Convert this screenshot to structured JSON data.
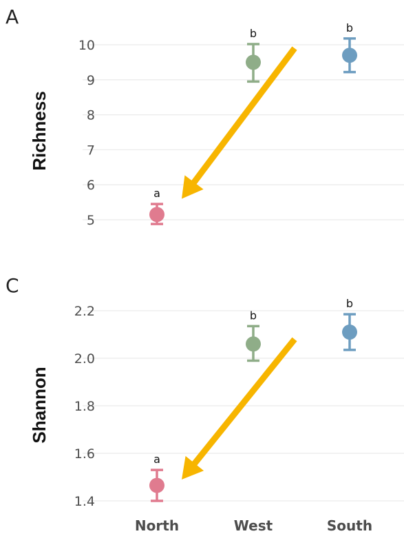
{
  "chart_data": [
    {
      "type": "scatter",
      "panel_label": "A",
      "ylabel": "Richness",
      "categories": [
        "North",
        "West",
        "South"
      ],
      "values": [
        5.15,
        9.5,
        9.7
      ],
      "error_low": [
        4.88,
        8.95,
        9.22
      ],
      "error_high": [
        5.45,
        10.02,
        10.18
      ],
      "significance_letters": [
        "a",
        "b",
        "b"
      ],
      "colors": [
        "#e07b8f",
        "#8fad88",
        "#6d9dc0"
      ],
      "ylim": [
        4.8,
        10.3
      ],
      "yticks": [
        5,
        6,
        7,
        8,
        9,
        10
      ],
      "ytick_labels": [
        "5",
        "6",
        "7",
        "8",
        "9",
        "10"
      ],
      "grid": true,
      "annotation_arrow": {
        "color": "#f7b500",
        "from": "West",
        "to": "North"
      }
    },
    {
      "type": "scatter",
      "panel_label": "C",
      "ylabel": "Shannon",
      "categories": [
        "North",
        "West",
        "South"
      ],
      "values": [
        1.465,
        2.06,
        2.11
      ],
      "error_low": [
        1.4,
        1.99,
        2.035
      ],
      "error_high": [
        1.53,
        2.135,
        2.185
      ],
      "significance_letters": [
        "a",
        "b",
        "b"
      ],
      "colors": [
        "#e07b8f",
        "#8fad88",
        "#6d9dc0"
      ],
      "ylim": [
        1.38,
        2.25
      ],
      "yticks": [
        1.4,
        1.6,
        1.8,
        2.0,
        2.2
      ],
      "ytick_labels": [
        "1.4",
        "1.6",
        "1.8",
        "2.0",
        "2.2"
      ],
      "xtick_labels": [
        "North",
        "West",
        "South"
      ],
      "grid": true,
      "annotation_arrow": {
        "color": "#f7b500",
        "from": "West",
        "to": "North"
      }
    }
  ]
}
